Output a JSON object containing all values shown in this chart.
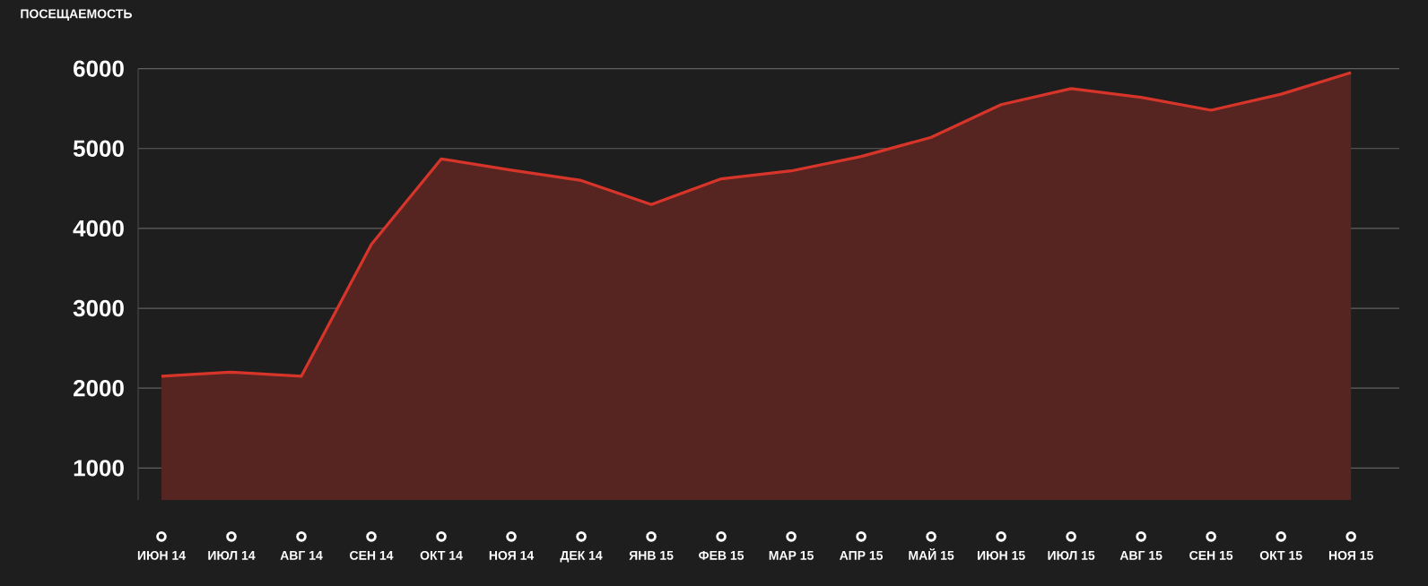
{
  "chart_data": {
    "type": "area",
    "ylabel": "ПОСЕЩАЕМОСТЬ",
    "categories": [
      "ИЮН 14",
      "ИЮЛ 14",
      "АВГ 14",
      "СЕН 14",
      "ОКТ 14",
      "НОЯ 14",
      "ДЕК 14",
      "ЯНВ 15",
      "ФЕВ 15",
      "МАР 15",
      "АПР 15",
      "МАЙ 15",
      "ИЮН 15",
      "ИЮЛ 15",
      "АВГ 15",
      "СЕН 15",
      "ОКТ 15",
      "НОЯ 15"
    ],
    "series": [
      {
        "color": "#d8352a",
        "values": [
          2150,
          2200,
          2150,
          3800,
          4870,
          4730,
          4600,
          4300,
          4620,
          4720,
          4900,
          5140,
          5550,
          5750,
          5640,
          5480,
          5680,
          5950
        ]
      }
    ],
    "ylim": [
      600,
      6000
    ],
    "yticks": [
      1000,
      2000,
      3000,
      4000,
      5000,
      6000
    ],
    "grid": "y"
  }
}
